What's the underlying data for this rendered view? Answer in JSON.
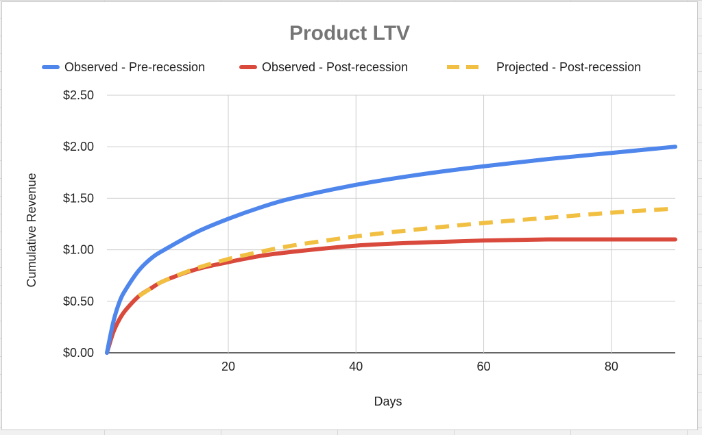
{
  "chart_data": {
    "type": "line",
    "title": "Product LTV",
    "xlabel": "Days",
    "ylabel": "Cumulative Revenue",
    "xlim": [
      1,
      90
    ],
    "ylim": [
      0,
      2.5
    ],
    "x_ticks": [
      20,
      40,
      60,
      80
    ],
    "y_ticks": [
      0,
      0.5,
      1.0,
      1.5,
      2.0,
      2.5
    ],
    "y_tick_labels": [
      "$0.00",
      "$0.50",
      "$1.00",
      "$1.50",
      "$2.00",
      "$2.50"
    ],
    "grid": true,
    "legend_position": "top",
    "series": [
      {
        "name": "Observed - Pre-recession",
        "color": "#4f86ec",
        "style": "solid",
        "x": [
          1,
          2,
          3,
          4,
          6,
          8,
          10,
          15,
          20,
          25,
          30,
          40,
          50,
          60,
          70,
          80,
          90
        ],
        "y": [
          0.0,
          0.3,
          0.5,
          0.62,
          0.8,
          0.92,
          1.0,
          1.17,
          1.3,
          1.41,
          1.5,
          1.63,
          1.73,
          1.81,
          1.88,
          1.94,
          2.0
        ]
      },
      {
        "name": "Observed - Post-recession",
        "color": "#d9493c",
        "style": "solid",
        "x": [
          1,
          2,
          3,
          4,
          6,
          8,
          10,
          15,
          20,
          25,
          30,
          40,
          50,
          60,
          70,
          80,
          90
        ],
        "y": [
          0.0,
          0.2,
          0.33,
          0.42,
          0.55,
          0.63,
          0.7,
          0.81,
          0.88,
          0.94,
          0.98,
          1.04,
          1.07,
          1.09,
          1.1,
          1.1,
          1.1
        ]
      },
      {
        "name": "Projected - Post-recession",
        "color": "#f1bf42",
        "style": "dashed",
        "x": [
          6,
          8,
          10,
          15,
          20,
          25,
          30,
          40,
          50,
          60,
          70,
          80,
          90
        ],
        "y": [
          0.55,
          0.63,
          0.7,
          0.82,
          0.91,
          0.98,
          1.04,
          1.13,
          1.2,
          1.26,
          1.31,
          1.36,
          1.4
        ]
      }
    ]
  }
}
